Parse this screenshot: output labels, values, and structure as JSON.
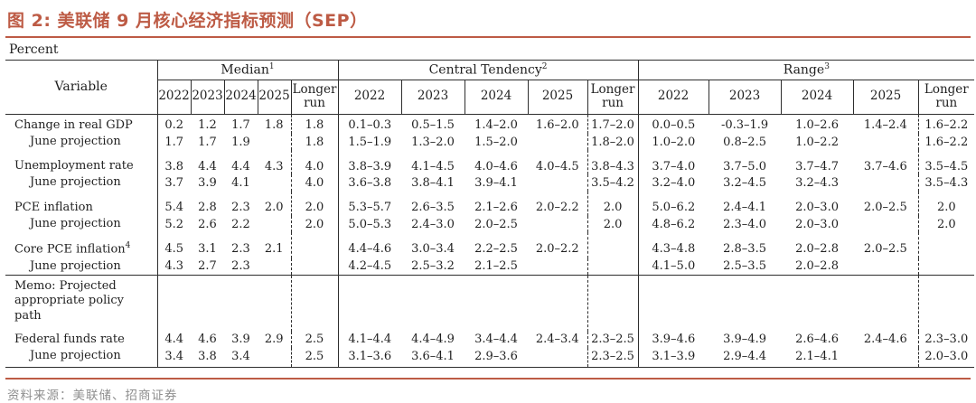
{
  "page": {
    "title": "图 2: 美联储 9 月核心经济指标预测（SEP）",
    "unit_label": "Percent",
    "source": "资料来源：美联储、招商证券"
  },
  "colors": {
    "accent": "#bd5b45",
    "table_line": "#2e2e2e",
    "source_text": "#8f8f8f"
  },
  "table": {
    "variable_header": "Variable",
    "longer_run_label": "Longer run",
    "groups": [
      {
        "label": "Median",
        "sup": "1"
      },
      {
        "label": "Central Tendency",
        "sup": "2"
      },
      {
        "label": "Range",
        "sup": "3"
      }
    ],
    "years": [
      "2022",
      "2023",
      "2024",
      "2025"
    ],
    "rows": [
      {
        "type": "data",
        "first": true,
        "label": "Change in real GDP",
        "values": [
          "0.2",
          "1.2",
          "1.7",
          "1.8",
          "1.8",
          "0.1–0.3",
          "0.5–1.5",
          "1.4–2.0",
          "1.6–2.0",
          "1.7–2.0",
          "0.0–0.5",
          "-0.3–1.9",
          "1.0–2.6",
          "1.4–2.4",
          "1.6–2.2"
        ]
      },
      {
        "type": "june",
        "label": "June projection",
        "values": [
          "1.7",
          "1.7",
          "1.9",
          "",
          "1.8",
          "1.5–1.9",
          "1.3–2.0",
          "1.5–2.0",
          "",
          "1.8–2.0",
          "1.0–2.0",
          "0.8–2.5",
          "1.0–2.2",
          "",
          "1.6–2.2"
        ]
      },
      {
        "type": "data",
        "spacer": true,
        "label": "Unemployment rate",
        "values": [
          "3.8",
          "4.4",
          "4.4",
          "4.3",
          "4.0",
          "3.8–3.9",
          "4.1–4.5",
          "4.0–4.6",
          "4.0–4.5",
          "3.8–4.3",
          "3.7–4.0",
          "3.7–5.0",
          "3.7–4.7",
          "3.7–4.6",
          "3.5–4.5"
        ]
      },
      {
        "type": "june",
        "label": "June projection",
        "values": [
          "3.7",
          "3.9",
          "4.1",
          "",
          "4.0",
          "3.6–3.8",
          "3.8–4.1",
          "3.9–4.1",
          "",
          "3.5–4.2",
          "3.2–4.0",
          "3.2–4.5",
          "3.2–4.3",
          "",
          "3.5–4.3"
        ]
      },
      {
        "type": "data",
        "spacer": true,
        "label": "PCE inflation",
        "values": [
          "5.4",
          "2.8",
          "2.3",
          "2.0",
          "2.0",
          "5.3–5.7",
          "2.6–3.5",
          "2.1–2.6",
          "2.0–2.2",
          "2.0",
          "5.0–6.2",
          "2.4–4.1",
          "2.0–3.0",
          "2.0–2.5",
          "2.0"
        ]
      },
      {
        "type": "june",
        "label": "June projection",
        "values": [
          "5.2",
          "2.6",
          "2.2",
          "",
          "2.0",
          "5.0–5.3",
          "2.4–3.0",
          "2.0–2.5",
          "",
          "2.0",
          "4.8–6.2",
          "2.3–4.0",
          "2.0–3.0",
          "",
          "2.0"
        ]
      },
      {
        "type": "data",
        "spacer": true,
        "label": "Core PCE inflation",
        "sup": "4",
        "values": [
          "4.5",
          "3.1",
          "2.3",
          "2.1",
          "",
          "4.4–4.6",
          "3.0–3.4",
          "2.2–2.5",
          "2.0–2.2",
          "",
          "4.3–4.8",
          "2.8–3.5",
          "2.0–2.8",
          "2.0–2.5",
          ""
        ]
      },
      {
        "type": "june",
        "label": "June projection",
        "values": [
          "4.3",
          "2.7",
          "2.3",
          "",
          "",
          "4.2–4.5",
          "2.5–3.2",
          "2.1–2.5",
          "",
          "",
          "4.1–5.0",
          "2.5–3.5",
          "2.0–2.8",
          "",
          ""
        ]
      },
      {
        "type": "memo",
        "label": "Memo: Projected appropriate policy path",
        "values": [
          "",
          "",
          "",
          "",
          "",
          "",
          "",
          "",
          "",
          "",
          "",
          "",
          "",
          "",
          ""
        ]
      },
      {
        "type": "data",
        "label": "Federal funds rate",
        "values": [
          "4.4",
          "4.6",
          "3.9",
          "2.9",
          "2.5",
          "4.1–4.4",
          "4.4–4.9",
          "3.4–4.4",
          "2.4–3.4",
          "2.3–2.5",
          "3.9–4.6",
          "3.9–4.9",
          "2.6–4.6",
          "2.4–4.6",
          "2.3–3.0"
        ]
      },
      {
        "type": "june",
        "last": true,
        "label": "June projection",
        "values": [
          "3.4",
          "3.8",
          "3.4",
          "",
          "2.5",
          "3.1–3.6",
          "3.6–4.1",
          "2.9–3.6",
          "",
          "2.3–2.5",
          "3.1–3.9",
          "2.9–4.4",
          "2.1–4.1",
          "",
          "2.0–3.0"
        ]
      }
    ]
  }
}
